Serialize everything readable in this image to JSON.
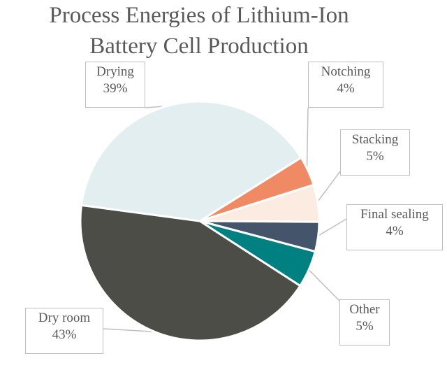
{
  "chart_data": {
    "type": "pie",
    "title_lines": [
      "Process Energies of Lithium-Ion",
      "Battery Cell Production"
    ],
    "slices": [
      {
        "label": "Notching",
        "value": 4,
        "value_label": "4%",
        "color": "#F08A65"
      },
      {
        "label": "Stacking",
        "value": 5,
        "value_label": "5%",
        "color": "#FCEBE1"
      },
      {
        "label": "Final sealing",
        "value": 4,
        "value_label": "4%",
        "color": "#44546A"
      },
      {
        "label": "Other",
        "value": 5,
        "value_label": "5%",
        "color": "#008080"
      },
      {
        "label": "Dry room",
        "value": 43,
        "value_label": "43%",
        "color": "#4D4D48"
      },
      {
        "label": "Drying",
        "value": 39,
        "value_label": "39%",
        "color": "#E3EEF0"
      }
    ],
    "legend": "none"
  }
}
